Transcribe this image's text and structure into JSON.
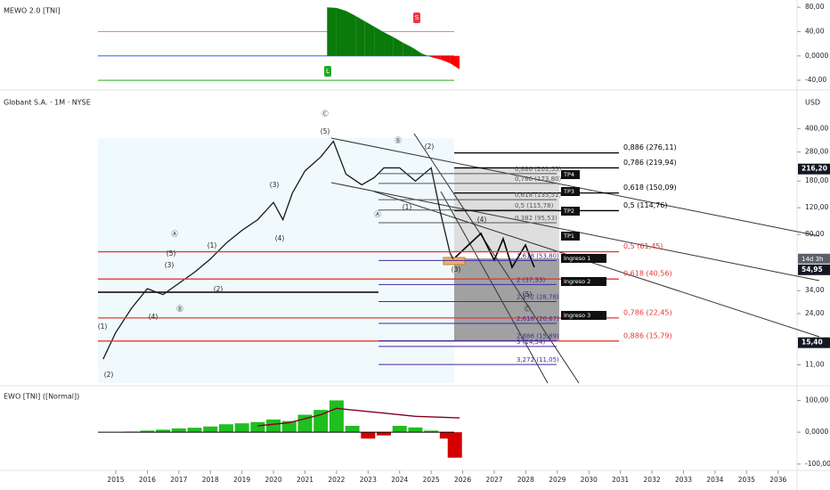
{
  "chart_data": [
    {
      "type": "area",
      "title": "MEWO 2.0 [TNI]",
      "x": [
        2021.7,
        2022.0,
        2022.3,
        2022.6,
        2022.9,
        2023.2,
        2023.5,
        2023.8,
        2024.1,
        2024.4,
        2024.7,
        2025.0,
        2025.3,
        2025.6,
        2025.9
      ],
      "values": [
        80,
        79,
        74,
        66,
        57,
        48,
        39,
        31,
        22,
        14,
        4,
        -2,
        -6,
        -12,
        -22
      ],
      "up_color": "#0a7a0a",
      "down_color": "#ff0000",
      "ylim": [
        -56,
        92
      ],
      "yticks": [
        {
          "value": 80,
          "label": "80,00"
        },
        {
          "value": 40,
          "label": "40,00"
        },
        {
          "value": 0,
          "label": "0,0000"
        },
        {
          "value": -40,
          "label": "-40,00"
        }
      ],
      "levels": [
        {
          "value": 40,
          "color": "#f08080"
        },
        {
          "value": 0,
          "color": "#2962ff"
        },
        {
          "value": -40,
          "color": "#22aa22"
        }
      ],
      "signals": [
        {
          "label": "S",
          "color": "#f23645"
        },
        {
          "label": "L",
          "color": "#22aa22"
        }
      ]
    },
    {
      "type": "line",
      "title": "Globant S.A. · 1M · NYSE",
      "unit": "USD",
      "log_scale": true,
      "color": "#1a1a1a",
      "x": [
        2014.6,
        2015.0,
        2015.5,
        2016.0,
        2016.5,
        2017.0,
        2017.5,
        2018.0,
        2018.5,
        2019.0,
        2019.5,
        2020.0,
        2020.3,
        2020.6,
        2021.0,
        2021.5,
        2021.9,
        2022.3,
        2022.8,
        2023.2,
        2023.5,
        2024.0,
        2024.5,
        2025.0,
        2025.3,
        2025.6,
        2025.7
      ],
      "values": [
        12,
        18,
        26,
        35,
        32,
        38,
        45,
        55,
        70,
        85,
        100,
        130,
        100,
        150,
        210,
        260,
        330,
        200,
        170,
        190,
        220,
        220,
        180,
        220,
        110,
        60,
        54.95
      ],
      "ylim": [
        8,
        700
      ],
      "yticks": [
        {
          "value": 400,
          "label": "400,00"
        },
        {
          "value": 280,
          "label": "280,00"
        },
        {
          "value": 180,
          "label": "180,00"
        },
        {
          "value": 120,
          "label": "120,00"
        },
        {
          "value": 80,
          "label": "80,00"
        },
        {
          "value": 34,
          "label": "34,00"
        },
        {
          "value": 24,
          "label": "24,00"
        },
        {
          "value": 11,
          "label": "11,00"
        }
      ],
      "price_marks": [
        {
          "value": 216.2,
          "label": "216,20"
        },
        {
          "value": 54.95,
          "label": "54,95"
        },
        {
          "value": 15.4,
          "label": "15,40"
        }
      ],
      "countdown": "14d 3h",
      "fib_outer": [
        {
          "label": "0,886 (276,11)",
          "value": 276.11,
          "color": "#000000"
        },
        {
          "label": "0,786 (219,94)",
          "value": 219.94,
          "color": "#000000"
        },
        {
          "label": "0,618 (150,09)",
          "value": 150.09,
          "color": "#000000"
        },
        {
          "label": "0,5 (114,76)",
          "value": 114.76,
          "color": "#000000"
        },
        {
          "label": "0,5 (61,45)",
          "value": 61.45,
          "color": "#e53935"
        },
        {
          "label": "0,618 (40,56)",
          "value": 40.56,
          "color": "#e53935"
        },
        {
          "label": "0,786 (22,45)",
          "value": 22.45,
          "color": "#e53935"
        },
        {
          "label": "0,886 (15,79)",
          "value": 15.79,
          "color": "#e53935"
        }
      ],
      "fib_inner": [
        {
          "label": "0,886 (201,55)",
          "value": 201.55,
          "color": "#555555"
        },
        {
          "label": "0,786 (173,80)",
          "value": 173.8,
          "color": "#555555"
        },
        {
          "label": "0,618 (135,51)",
          "value": 135.51,
          "color": "#555555"
        },
        {
          "label": "0,5 (115,78)",
          "value": 115.78,
          "color": "#555555"
        },
        {
          "label": "0,382 (95,53)",
          "value": 95.53,
          "color": "#555555"
        },
        {
          "label": "1,618 (53,80)",
          "value": 53.8,
          "color": "#4527a0"
        },
        {
          "label": "2 (37,33)",
          "value": 37.33,
          "color": "#4527a0"
        },
        {
          "label": "2,272 (28,78)",
          "value": 28.78,
          "color": "#4527a0"
        },
        {
          "label": "2,618 (20,67)",
          "value": 20.67,
          "color": "#4527a0"
        },
        {
          "label": "2,886 (15,89)",
          "value": 15.89,
          "color": "#4527a0"
        },
        {
          "label": "3 (14,54)",
          "value": 14.54,
          "color": "#4527a0"
        },
        {
          "label": "3,272 (11,05)",
          "value": 11.05,
          "color": "#4527a0"
        }
      ],
      "targets": [
        "TP4",
        "TP3",
        "TP2",
        "TP1",
        "Ingreso 1",
        "Ingreso 2",
        "Ingreso 3"
      ],
      "annotations": [
        "Ⓒ",
        "(5)",
        "Ⓑ",
        "(2)",
        "(3)",
        "(1)",
        "(2)",
        "(3)",
        "(4)",
        "(5)",
        "Ⓐ",
        "Ⓑ",
        "(1)",
        "(2)",
        "(4)",
        "Ⓐ",
        "(1)",
        "(4)",
        "(3)",
        "(5)",
        "Ⓒ"
      ]
    },
    {
      "type": "bar",
      "title": "EWO [TNI] ([Normal])",
      "x": [
        2015.0,
        2015.5,
        2016.0,
        2016.5,
        2017.0,
        2017.5,
        2018.0,
        2018.5,
        2019.0,
        2019.5,
        2020.0,
        2020.5,
        2021.0,
        2021.5,
        2022.0,
        2022.5,
        2023.0,
        2023.5,
        2024.0,
        2024.5,
        2025.0,
        2025.5,
        2025.75
      ],
      "values": [
        0,
        2,
        5,
        8,
        12,
        14,
        18,
        25,
        28,
        32,
        40,
        35,
        55,
        70,
        100,
        20,
        -20,
        -10,
        20,
        15,
        5,
        -20,
        -80
      ],
      "up_color": "#1fbf1f",
      "down_color": "#d40000",
      "ylim": [
        -120,
        146
      ],
      "yticks": [
        {
          "value": 100,
          "label": "100,00"
        },
        {
          "value": 0,
          "label": "0,0000"
        },
        {
          "value": -100,
          "label": "-100,00"
        }
      ],
      "signal": {
        "x": [
          2019.5,
          2020.5,
          2021.5,
          2022.0,
          2022.5,
          2023.5,
          2024.5,
          2025.9
        ],
        "values": [
          20,
          30,
          55,
          75,
          70,
          60,
          50,
          45
        ],
        "color": "#800020"
      },
      "xlim": [
        2011.33,
        2036.6
      ],
      "xticks": [
        2015,
        2016,
        2017,
        2018,
        2019,
        2020,
        2021,
        2022,
        2023,
        2024,
        2025,
        2026,
        2027,
        2028,
        2029,
        2030,
        2031,
        2032,
        2033,
        2034,
        2035,
        2036
      ]
    }
  ]
}
